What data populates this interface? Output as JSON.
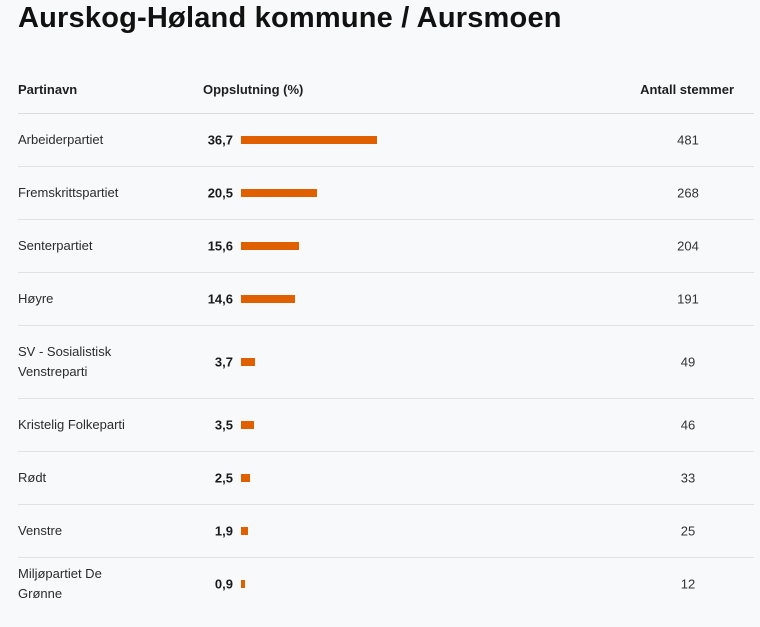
{
  "title": "Aurskog-Høland kommune / Aursmoen",
  "columns": {
    "party": "Partinavn",
    "percent": "Oppslutning (%)",
    "votes": "Antall stemmer"
  },
  "colors": {
    "bar": "#e06000"
  },
  "chart_data": {
    "type": "bar",
    "title": "Aurskog-Høland kommune / Aursmoen",
    "categories": [
      "Arbeiderpartiet",
      "Fremskrittspartiet",
      "Senterpartiet",
      "Høyre",
      "SV - Sosialistisk Venstreparti",
      "Kristelig Folkeparti",
      "Rødt",
      "Venstre",
      "Miljøpartiet De Grønne"
    ],
    "series": [
      {
        "name": "Oppslutning (%)",
        "values": [
          36.7,
          20.5,
          15.6,
          14.6,
          3.7,
          3.5,
          2.5,
          1.9,
          0.9
        ],
        "labels": [
          "36,7",
          "20,5",
          "15,6",
          "14,6",
          "3,7",
          "3,5",
          "2,5",
          "1,9",
          "0,9"
        ]
      },
      {
        "name": "Antall stemmer",
        "values": [
          481,
          268,
          204,
          191,
          49,
          46,
          33,
          25,
          12
        ]
      }
    ]
  }
}
